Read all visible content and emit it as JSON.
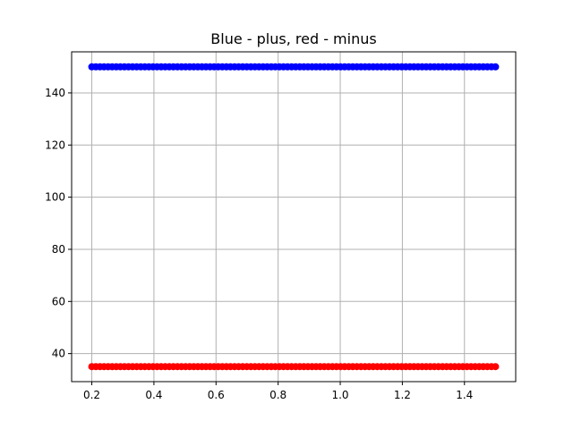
{
  "chart_data": {
    "type": "scatter",
    "title": "Blue - plus, red - minus",
    "xlabel": "",
    "ylabel": "",
    "xlim": [
      0.135,
      1.565
    ],
    "ylim": [
      29.25,
      155.75
    ],
    "x_ticks": [
      0.2,
      0.4,
      0.6,
      0.8,
      1.0,
      1.2,
      1.4
    ],
    "x_tick_labels": [
      "0.2",
      "0.4",
      "0.6",
      "0.8",
      "1.0",
      "1.2",
      "1.4"
    ],
    "y_ticks": [
      40,
      60,
      80,
      100,
      120,
      140
    ],
    "y_tick_labels": [
      "40",
      "60",
      "80",
      "100",
      "120",
      "140"
    ],
    "grid": true,
    "x": {
      "start": 0.2,
      "stop": 1.5,
      "count": 100
    },
    "series": [
      {
        "color": "#0000ff",
        "y_constant": 150
      },
      {
        "color": "#ff0000",
        "y_constant": 35
      }
    ]
  }
}
